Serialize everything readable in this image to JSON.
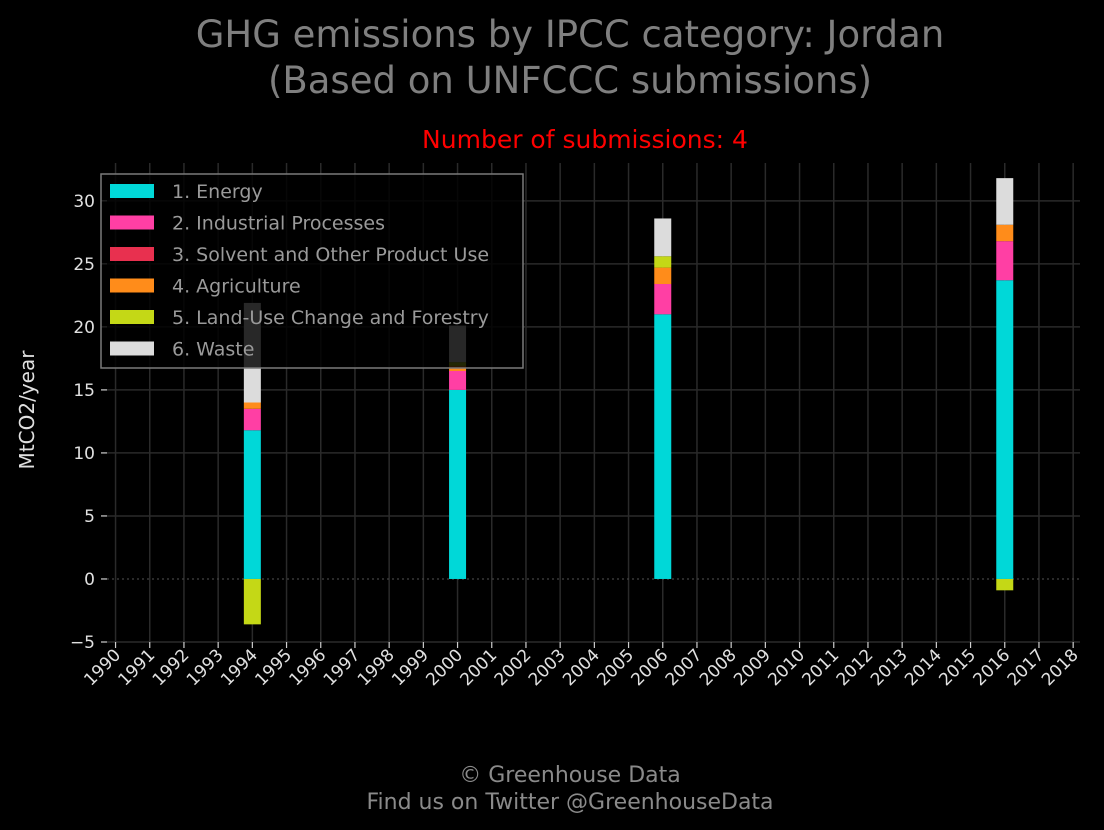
{
  "chart_data": {
    "type": "bar",
    "stacked": true,
    "title_lines": [
      "GHG emissions by IPCC category: Jordan",
      "(Based on UNFCCC submissions)"
    ],
    "subtitle": "Number of submissions: 4",
    "ylabel": "MtCO2/year",
    "ylim": [
      -5,
      33
    ],
    "yticks": [
      -5,
      0,
      5,
      10,
      15,
      20,
      25,
      30
    ],
    "ytick_labels": [
      "−5",
      "0",
      "5",
      "10",
      "15",
      "20",
      "25",
      "30"
    ],
    "x_years": [
      "1990",
      "1991",
      "1992",
      "1993",
      "1994",
      "1995",
      "1996",
      "1997",
      "1998",
      "1999",
      "2000",
      "2001",
      "2002",
      "2003",
      "2004",
      "2005",
      "2006",
      "2007",
      "2008",
      "2009",
      "2010",
      "2011",
      "2012",
      "2013",
      "2014",
      "2015",
      "2016",
      "2017",
      "2018"
    ],
    "grid": true,
    "legend_position": "top-left",
    "series": [
      {
        "name": "1. Energy",
        "color": "#00d8d8",
        "values": {
          "1994": 11.8,
          "2000": 15.0,
          "2006": 21.0,
          "2016": 23.7
        }
      },
      {
        "name": "2. Industrial Processes",
        "color": "#ff3fa4",
        "values": {
          "1994": 1.7,
          "2000": 1.5,
          "2006": 2.4,
          "2016": 3.1
        }
      },
      {
        "name": "3. Solvent and Other Product Use",
        "color": "#e8304f",
        "values": {
          "1994": 0,
          "2000": 0,
          "2006": 0,
          "2016": 0
        }
      },
      {
        "name": "4. Agriculture",
        "color": "#ff8c1a",
        "values": {
          "1994": 0.5,
          "2000": 0.4,
          "2006": 1.3,
          "2016": 1.3
        }
      },
      {
        "name": "5. Land-Use Change and Forestry",
        "color": "#c4d816",
        "values": {
          "1994": -3.6,
          "2000": 0.3,
          "2006": 0.9,
          "2016": -0.9
        }
      },
      {
        "name": "6. Waste",
        "color": "#dcdcdc",
        "values": {
          "1994": 7.9,
          "2000": 2.9,
          "2006": 3.0,
          "2016": 3.7
        }
      }
    ]
  },
  "footer": {
    "copyright": "© Greenhouse Data",
    "twitter": "Find us on Twitter @GreenhouseData"
  }
}
